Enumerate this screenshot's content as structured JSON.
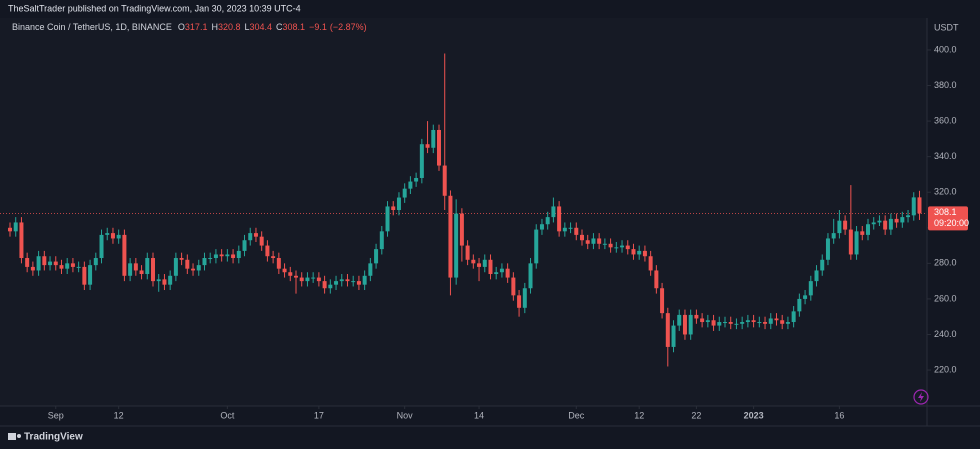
{
  "header": {
    "published": "TheSaltTrader published on TradingView.com, Jan 30, 2023 10:39 UTC-4"
  },
  "footer": {
    "brand": "TradingView"
  },
  "chart_data": {
    "type": "candlestick",
    "title": "Binance Coin / TetherUS, 1D, BINANCE",
    "ohlc_labels": [
      "O",
      "H",
      "L",
      "C"
    ],
    "change": {
      "value": -9.1,
      "label": "−9.1"
    },
    "change_pct": {
      "value": -2.87,
      "label": "(−2.87%)"
    },
    "y_axis_label": "USDT",
    "countdown": "09:20:00",
    "up_color": "#26a69a",
    "down_color": "#ef5350",
    "grid": false,
    "ylim": [
      200,
      420
    ],
    "yticks": [
      {
        "value": 220,
        "label": "220.0"
      },
      {
        "value": 240,
        "label": "240.0"
      },
      {
        "value": 260,
        "label": "260.0"
      },
      {
        "value": 280,
        "label": "280.0"
      },
      {
        "value": 300,
        "label": "300.0"
      },
      {
        "value": 320,
        "label": "320.0"
      },
      {
        "value": 340,
        "label": "340.0"
      },
      {
        "value": 360,
        "label": "360.0"
      },
      {
        "value": 380,
        "label": "380.0"
      },
      {
        "value": 400,
        "label": "400.0"
      }
    ],
    "xticks": [
      {
        "value": "Sep 1",
        "label": "Sep"
      },
      {
        "value": "Sep 12",
        "label": "12"
      },
      {
        "value": "Oct 1",
        "label": "Oct"
      },
      {
        "value": "Oct 17",
        "label": "17"
      },
      {
        "value": "Nov 1",
        "label": "Nov"
      },
      {
        "value": "Nov 14",
        "label": "14"
      },
      {
        "value": "Dec 1",
        "label": "Dec"
      },
      {
        "value": "Dec 12",
        "label": "12"
      },
      {
        "value": "Dec 22",
        "label": "22"
      },
      {
        "value": "Jan 1",
        "label": "2023"
      },
      {
        "value": "Jan 16",
        "label": "16"
      }
    ],
    "x": [
      "Aug 24",
      "Aug 25",
      "Aug 26",
      "Aug 27",
      "Aug 28",
      "Aug 29",
      "Aug 30",
      "Aug 31",
      "Sep 1",
      "Sep 2",
      "Sep 3",
      "Sep 4",
      "Sep 5",
      "Sep 6",
      "Sep 7",
      "Sep 8",
      "Sep 9",
      "Sep 10",
      "Sep 11",
      "Sep 12",
      "Sep 13",
      "Sep 14",
      "Sep 15",
      "Sep 16",
      "Sep 17",
      "Sep 18",
      "Sep 19",
      "Sep 20",
      "Sep 21",
      "Sep 22",
      "Sep 23",
      "Sep 24",
      "Sep 25",
      "Sep 26",
      "Sep 27",
      "Sep 28",
      "Sep 29",
      "Sep 30",
      "Oct 1",
      "Oct 2",
      "Oct 3",
      "Oct 4",
      "Oct 5",
      "Oct 6",
      "Oct 7",
      "Oct 8",
      "Oct 9",
      "Oct 10",
      "Oct 11",
      "Oct 12",
      "Oct 13",
      "Oct 14",
      "Oct 15",
      "Oct 16",
      "Oct 17",
      "Oct 18",
      "Oct 19",
      "Oct 20",
      "Oct 21",
      "Oct 22",
      "Oct 23",
      "Oct 24",
      "Oct 25",
      "Oct 26",
      "Oct 27",
      "Oct 28",
      "Oct 29",
      "Oct 30",
      "Oct 31",
      "Nov 1",
      "Nov 2",
      "Nov 3",
      "Nov 4",
      "Nov 5",
      "Nov 6",
      "Nov 7",
      "Nov 8",
      "Nov 9",
      "Nov 10",
      "Nov 11",
      "Nov 12",
      "Nov 13",
      "Nov 14",
      "Nov 15",
      "Nov 16",
      "Nov 17",
      "Nov 18",
      "Nov 19",
      "Nov 20",
      "Nov 21",
      "Nov 22",
      "Nov 23",
      "Nov 24",
      "Nov 25",
      "Nov 26",
      "Nov 27",
      "Nov 28",
      "Nov 29",
      "Nov 30",
      "Dec 1",
      "Dec 2",
      "Dec 3",
      "Dec 4",
      "Dec 5",
      "Dec 6",
      "Dec 7",
      "Dec 8",
      "Dec 9",
      "Dec 10",
      "Dec 11",
      "Dec 12",
      "Dec 13",
      "Dec 14",
      "Dec 15",
      "Dec 16",
      "Dec 17",
      "Dec 18",
      "Dec 19",
      "Dec 20",
      "Dec 21",
      "Dec 22",
      "Dec 23",
      "Dec 24",
      "Dec 25",
      "Dec 26",
      "Dec 27",
      "Dec 28",
      "Dec 29",
      "Dec 30",
      "Dec 31",
      "Jan 1",
      "Jan 2",
      "Jan 3",
      "Jan 4",
      "Jan 5",
      "Jan 6",
      "Jan 7",
      "Jan 8",
      "Jan 9",
      "Jan 10",
      "Jan 11",
      "Jan 12",
      "Jan 13",
      "Jan 14",
      "Jan 15",
      "Jan 16",
      "Jan 17",
      "Jan 18",
      "Jan 19",
      "Jan 20",
      "Jan 21",
      "Jan 22",
      "Jan 23",
      "Jan 24",
      "Jan 25",
      "Jan 26",
      "Jan 27",
      "Jan 28",
      "Jan 29",
      "Jan 30"
    ],
    "open": [
      300,
      298,
      303,
      283,
      278,
      276,
      284,
      279,
      281,
      279,
      277,
      280,
      278,
      278,
      268,
      279,
      283,
      296,
      297,
      294,
      296,
      273,
      280,
      276,
      274,
      283,
      270,
      271,
      268,
      273,
      283,
      282,
      277,
      276,
      279,
      283,
      283,
      285,
      284,
      285,
      283,
      287,
      293,
      297,
      295,
      290,
      284,
      283,
      277,
      275,
      273,
      272,
      270,
      272,
      272,
      270,
      266,
      268,
      270,
      271,
      270,
      270,
      268,
      273,
      280,
      288,
      298,
      312,
      310,
      317,
      322,
      326,
      328,
      347,
      345,
      355,
      335,
      318,
      272,
      308,
      290,
      282,
      280,
      278,
      282,
      274,
      275,
      277,
      272,
      262,
      255,
      266,
      280,
      299,
      302,
      306,
      312,
      298,
      300,
      300,
      296,
      293,
      291,
      294,
      291,
      291,
      289,
      289,
      290,
      288,
      285,
      287,
      284,
      276,
      266,
      252,
      233,
      245,
      251,
      240,
      251,
      249,
      247,
      248,
      245,
      247,
      247,
      246,
      246,
      247,
      248,
      247,
      247,
      246,
      249,
      248,
      246,
      247,
      253,
      260,
      262,
      270,
      276,
      282,
      294,
      297,
      304,
      299,
      285,
      298,
      296,
      302,
      303,
      304,
      299,
      305,
      303,
      306,
      307,
      317.1
    ],
    "high": [
      303,
      306,
      306,
      286,
      281,
      287,
      287,
      284,
      284,
      282,
      283,
      283,
      281,
      281,
      282,
      286,
      299,
      300,
      300,
      299,
      299,
      283,
      283,
      279,
      286,
      286,
      274,
      274,
      276,
      286,
      286,
      285,
      280,
      282,
      286,
      286,
      288,
      288,
      288,
      288,
      290,
      296,
      300,
      300,
      298,
      293,
      287,
      286,
      280,
      278,
      276,
      275,
      275,
      275,
      275,
      273,
      271,
      273,
      274,
      274,
      273,
      273,
      276,
      283,
      291,
      301,
      315,
      315,
      320,
      325,
      329,
      331,
      350,
      360,
      358,
      358,
      398,
      321,
      316,
      311,
      293,
      285,
      283,
      285,
      285,
      278,
      280,
      280,
      275,
      265,
      269,
      283,
      302,
      305,
      309,
      317,
      315,
      303,
      303,
      303,
      299,
      296,
      297,
      297,
      294,
      294,
      292,
      293,
      293,
      291,
      290,
      290,
      287,
      279,
      269,
      255,
      248,
      254,
      254,
      254,
      254,
      252,
      251,
      251,
      250,
      250,
      250,
      249,
      250,
      251,
      251,
      250,
      250,
      252,
      252,
      251,
      250,
      256,
      263,
      265,
      273,
      279,
      285,
      297,
      305,
      310,
      307,
      324,
      301,
      301,
      305,
      306,
      307,
      307,
      308,
      308,
      309,
      310,
      320,
      320.8
    ],
    "low": [
      295,
      295,
      280,
      275,
      273,
      273,
      276,
      276,
      276,
      274,
      274,
      275,
      275,
      265,
      265,
      276,
      280,
      293,
      291,
      291,
      270,
      270,
      273,
      271,
      271,
      267,
      264,
      265,
      265,
      270,
      279,
      274,
      273,
      273,
      276,
      280,
      280,
      281,
      281,
      280,
      280,
      284,
      290,
      292,
      287,
      281,
      280,
      274,
      272,
      270,
      263,
      267,
      267,
      269,
      267,
      263,
      263,
      265,
      267,
      267,
      267,
      265,
      265,
      270,
      277,
      285,
      295,
      307,
      307,
      314,
      319,
      323,
      325,
      342,
      342,
      332,
      310,
      262,
      268,
      281,
      279,
      277,
      270,
      275,
      271,
      271,
      272,
      269,
      259,
      250,
      252,
      263,
      277,
      296,
      299,
      303,
      295,
      295,
      297,
      293,
      290,
      288,
      288,
      288,
      288,
      286,
      286,
      286,
      285,
      282,
      282,
      281,
      273,
      263,
      249,
      222,
      230,
      242,
      237,
      237,
      246,
      244,
      244,
      242,
      242,
      244,
      243,
      243,
      243,
      244,
      244,
      244,
      243,
      243,
      245,
      243,
      243,
      244,
      250,
      257,
      259,
      267,
      273,
      279,
      291,
      294,
      296,
      282,
      282,
      293,
      293,
      299,
      301,
      296,
      296,
      300,
      300,
      303,
      304,
      304.4
    ],
    "close": [
      298,
      303,
      283,
      278,
      276,
      284,
      279,
      281,
      279,
      277,
      280,
      278,
      278,
      268,
      279,
      283,
      296,
      297,
      294,
      296,
      273,
      280,
      276,
      274,
      283,
      270,
      271,
      268,
      273,
      283,
      282,
      277,
      276,
      279,
      283,
      283,
      285,
      284,
      285,
      283,
      287,
      293,
      297,
      295,
      290,
      284,
      283,
      277,
      275,
      273,
      272,
      270,
      272,
      272,
      270,
      266,
      268,
      270,
      271,
      270,
      270,
      268,
      273,
      280,
      288,
      298,
      312,
      310,
      317,
      322,
      326,
      328,
      347,
      345,
      355,
      335,
      318,
      272,
      308,
      290,
      282,
      280,
      278,
      282,
      274,
      275,
      277,
      272,
      262,
      255,
      266,
      280,
      299,
      302,
      306,
      312,
      298,
      300,
      300,
      296,
      293,
      291,
      294,
      291,
      291,
      289,
      289,
      290,
      288,
      285,
      287,
      284,
      276,
      266,
      252,
      233,
      245,
      251,
      240,
      251,
      249,
      247,
      248,
      245,
      247,
      247,
      246,
      246,
      247,
      248,
      247,
      247,
      246,
      249,
      248,
      246,
      247,
      253,
      260,
      262,
      270,
      276,
      282,
      294,
      297,
      304,
      299,
      285,
      298,
      296,
      302,
      303,
      304,
      299,
      305,
      303,
      306,
      307,
      317.1,
      308.1
    ]
  }
}
